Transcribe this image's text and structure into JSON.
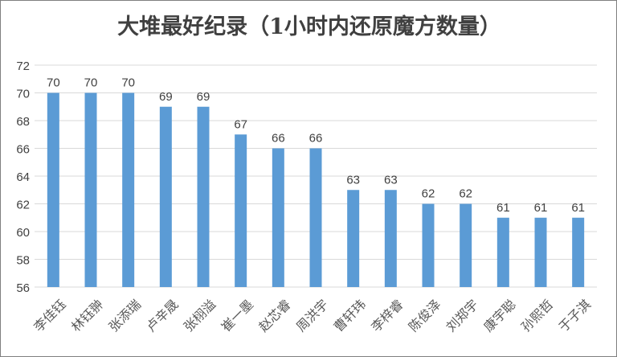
{
  "chart_data": {
    "type": "bar",
    "title": "大堆最好纪录（1小时内还原魔方数量）",
    "xlabel": "",
    "ylabel": "",
    "categories": [
      "李佳钰",
      "林钰翀",
      "张添瑞",
      "卢辛晟",
      "张栩溢",
      "崔一墨",
      "赵芯睿",
      "周洪宇",
      "曹轩玮",
      "李梓睿",
      "陈俊泽",
      "刘郑宇",
      "康宇聪",
      "孙熙哲",
      "于子淇"
    ],
    "values": [
      70,
      70,
      70,
      69,
      69,
      67,
      66,
      66,
      63,
      63,
      62,
      62,
      61,
      61,
      61
    ],
    "ylim": [
      56,
      72
    ],
    "yticks": [
      56,
      58,
      60,
      62,
      64,
      66,
      68,
      70,
      72
    ],
    "grid": true,
    "legend": "none",
    "bar_color": "#5b9bd5",
    "grid_color": "#d9d9d9"
  }
}
